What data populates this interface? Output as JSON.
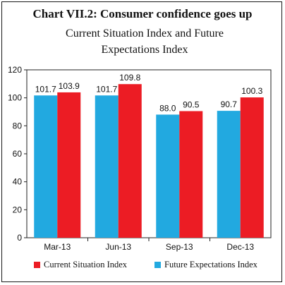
{
  "chart_data": {
    "type": "bar",
    "title": "Chart VII.2: Consumer confidence goes up",
    "subtitle": "Current Situation Index and Future Expectations Index",
    "categories": [
      "Mar-13",
      "Jun-13",
      "Sep-13",
      "Dec-13"
    ],
    "series": [
      {
        "name": "Future Expectations Index",
        "color": "#22a9e0",
        "values": [
          101.7,
          101.7,
          88.0,
          90.7
        ],
        "labels": [
          "101.7",
          "101.7",
          "88.0",
          "90.7"
        ]
      },
      {
        "name": "Current Situation Index",
        "color": "#ec1c24",
        "values": [
          103.9,
          109.8,
          90.5,
          100.3
        ],
        "labels": [
          "103.9",
          "109.8",
          "90.5",
          "100.3"
        ]
      }
    ],
    "ylim": [
      0,
      120
    ],
    "yticks": [
      0,
      20,
      40,
      60,
      80,
      100,
      120
    ],
    "legend_order": [
      "Current Situation Index",
      "Future Expectations Index"
    ],
    "legend_position": "bottom",
    "xlabel": "",
    "ylabel": ""
  }
}
